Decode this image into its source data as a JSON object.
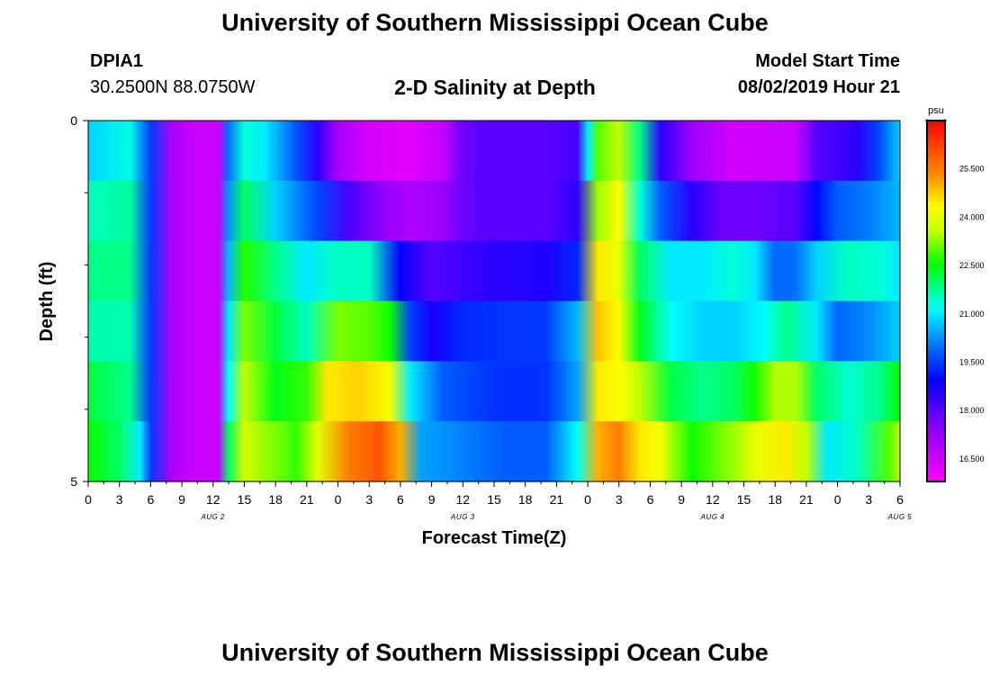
{
  "header": {
    "top_title": "University of Southern Mississippi Ocean Cube",
    "station_id": "DPIA1",
    "location": "30.2500N 88.0750W",
    "model_start_label": "Model Start Time",
    "model_start_value": "08/02/2019 Hour 21"
  },
  "footer": {
    "bottom_title": "University of Southern Mississippi Ocean Cube"
  },
  "chart_data": {
    "type": "heatmap",
    "title": "2-D Salinity at Depth",
    "xlabel": "Forecast Time(Z)",
    "ylabel": "Depth (ft)",
    "ylim": [
      0,
      5
    ],
    "y_tick_labels": [
      "0",
      "5"
    ],
    "x_tick_labels": [
      "0",
      "3",
      "6",
      "9",
      "12",
      "15",
      "18",
      "21",
      "0",
      "3",
      "6",
      "9",
      "12",
      "15",
      "18",
      "21",
      "0",
      "3",
      "6",
      "9",
      "12",
      "15",
      "18",
      "21",
      "0",
      "3",
      "6"
    ],
    "day_labels": [
      {
        "text": "AUG 2",
        "hour": 12
      },
      {
        "text": "AUG 3",
        "hour": 36
      },
      {
        "text": "AUG 4",
        "hour": 60
      },
      {
        "text": "AUG 5",
        "hour": 78
      }
    ],
    "x_range_hours": [
      0,
      78
    ],
    "colorbar": {
      "unit": "psu",
      "min": 15.8,
      "max": 27.0,
      "tick_labels": [
        "16.500",
        "18.000",
        "19.500",
        "21.000",
        "22.500",
        "24.000",
        "25.500"
      ],
      "tick_values": [
        16.5,
        18.0,
        19.5,
        21.0,
        22.5,
        24.0,
        25.5
      ]
    },
    "depth_rows": [
      "0-1 ft",
      "1-2 ft",
      "2-3 ft",
      "3-4 ft",
      "4-5 ft",
      "5 ft"
    ],
    "salinity_keypoints": [
      [
        [
          0,
          20.8
        ],
        [
          4,
          21.3
        ],
        [
          6,
          19.5
        ],
        [
          8,
          17.0
        ],
        [
          10,
          16.6
        ],
        [
          12.5,
          16.6
        ],
        [
          13.5,
          20
        ],
        [
          15,
          21.4
        ],
        [
          17,
          21.0
        ],
        [
          20,
          19.7
        ],
        [
          22,
          18.5
        ],
        [
          24,
          17.0
        ],
        [
          27,
          16.4
        ],
        [
          31,
          16.2
        ],
        [
          34,
          16.6
        ],
        [
          36,
          17.8
        ],
        [
          38,
          18.0
        ],
        [
          44,
          18.0
        ],
        [
          47,
          18.2
        ],
        [
          48,
          21.0
        ],
        [
          49,
          23.0
        ],
        [
          51,
          23.6
        ],
        [
          53,
          21.8
        ],
        [
          55,
          18.5
        ],
        [
          58,
          17.2
        ],
        [
          62,
          16.4
        ],
        [
          68,
          16.6
        ],
        [
          70,
          18.0
        ],
        [
          74,
          18.5
        ],
        [
          76,
          19.6
        ],
        [
          78,
          20.8
        ]
      ],
      [
        [
          0,
          21.5
        ],
        [
          4,
          21.7
        ],
        [
          6,
          19.5
        ],
        [
          8,
          17.0
        ],
        [
          10,
          16.6
        ],
        [
          12.5,
          16.6
        ],
        [
          13.5,
          20.3
        ],
        [
          15,
          22.0
        ],
        [
          18,
          20.8
        ],
        [
          20,
          20.2
        ],
        [
          22,
          19.6
        ],
        [
          25,
          18.2
        ],
        [
          28,
          17.4
        ],
        [
          31,
          16.9
        ],
        [
          34,
          17.2
        ],
        [
          36,
          17.8
        ],
        [
          38,
          18.0
        ],
        [
          44,
          18.0
        ],
        [
          47,
          18.5
        ],
        [
          49,
          23.4
        ],
        [
          51,
          24.3
        ],
        [
          53,
          21.4
        ],
        [
          55,
          19.8
        ],
        [
          58,
          18.5
        ],
        [
          61,
          17.8
        ],
        [
          64,
          17.8
        ],
        [
          68,
          18.0
        ],
        [
          70,
          19.0
        ],
        [
          72,
          19.8
        ],
        [
          75,
          20.1
        ],
        [
          78,
          20.6
        ]
      ],
      [
        [
          0,
          21.8
        ],
        [
          4,
          21.8
        ],
        [
          6,
          19.5
        ],
        [
          8,
          17.0
        ],
        [
          10,
          16.6
        ],
        [
          12.5,
          16.6
        ],
        [
          13.5,
          20.6
        ],
        [
          15,
          22.7
        ],
        [
          18,
          21.8
        ],
        [
          21,
          21.0
        ],
        [
          24,
          21.5
        ],
        [
          27,
          21.5
        ],
        [
          30,
          18.9
        ],
        [
          33,
          18.0
        ],
        [
          36,
          18.3
        ],
        [
          39,
          18.5
        ],
        [
          44,
          18.6
        ],
        [
          47,
          19.3
        ],
        [
          49,
          24.5
        ],
        [
          51,
          24.0
        ],
        [
          53,
          22.0
        ],
        [
          56,
          21.0
        ],
        [
          59,
          21.0
        ],
        [
          62,
          21.4
        ],
        [
          64,
          21.0
        ],
        [
          66,
          19.9
        ],
        [
          68,
          20.0
        ],
        [
          70,
          20.8
        ],
        [
          73,
          21.5
        ],
        [
          76,
          21.4
        ],
        [
          78,
          21.0
        ]
      ],
      [
        [
          0,
          21.6
        ],
        [
          4,
          21.6
        ],
        [
          6,
          19.5
        ],
        [
          8,
          17.0
        ],
        [
          10,
          16.6
        ],
        [
          12.5,
          16.6
        ],
        [
          13.5,
          21.0
        ],
        [
          15,
          23.2
        ],
        [
          18,
          22.2
        ],
        [
          21,
          21.5
        ],
        [
          24,
          23.2
        ],
        [
          27,
          23.0
        ],
        [
          29,
          22.6
        ],
        [
          31,
          19.5
        ],
        [
          33,
          18.7
        ],
        [
          36,
          19.3
        ],
        [
          39,
          19.4
        ],
        [
          44,
          19.5
        ],
        [
          47,
          20.6
        ],
        [
          49,
          24.8
        ],
        [
          51,
          24.3
        ],
        [
          53,
          22.4
        ],
        [
          56,
          21.2
        ],
        [
          59,
          20.8
        ],
        [
          62,
          20.8
        ],
        [
          65,
          21.2
        ],
        [
          67,
          21.8
        ],
        [
          70,
          21.0
        ],
        [
          72,
          19.9
        ],
        [
          75,
          20.2
        ],
        [
          78,
          20.8
        ]
      ],
      [
        [
          0,
          22.2
        ],
        [
          4,
          21.8
        ],
        [
          6,
          19.5
        ],
        [
          8,
          17.0
        ],
        [
          10,
          16.6
        ],
        [
          12.5,
          16.6
        ],
        [
          13.5,
          21.2
        ],
        [
          15,
          23.6
        ],
        [
          18,
          22.4
        ],
        [
          21,
          22.8
        ],
        [
          23,
          24.5
        ],
        [
          26,
          24.7
        ],
        [
          29,
          24.2
        ],
        [
          31,
          21.0
        ],
        [
          34,
          19.8
        ],
        [
          39,
          19.4
        ],
        [
          44,
          19.4
        ],
        [
          47,
          20.4
        ],
        [
          49,
          24.5
        ],
        [
          51,
          24.3
        ],
        [
          53,
          23.6
        ],
        [
          56,
          22.2
        ],
        [
          59,
          21.8
        ],
        [
          62,
          22.0
        ],
        [
          64,
          22.6
        ],
        [
          66,
          23.5
        ],
        [
          68,
          23.5
        ],
        [
          70,
          22.0
        ],
        [
          73,
          21.4
        ],
        [
          76,
          21.8
        ],
        [
          78,
          22.5
        ]
      ],
      [
        [
          0,
          22.6
        ],
        [
          3,
          22.0
        ],
        [
          5,
          21.0
        ],
        [
          6,
          19.5
        ],
        [
          8,
          17.0
        ],
        [
          10,
          16.6
        ],
        [
          12.5,
          16.6
        ],
        [
          13.5,
          22.0
        ],
        [
          15,
          23.8
        ],
        [
          18,
          23.2
        ],
        [
          20,
          22.8
        ],
        [
          22,
          24.0
        ],
        [
          25,
          25.5
        ],
        [
          28,
          26.0
        ],
        [
          30,
          25.0
        ],
        [
          32,
          20.4
        ],
        [
          35,
          20.2
        ],
        [
          40,
          19.8
        ],
        [
          44,
          19.8
        ],
        [
          47,
          21.2
        ],
        [
          49,
          25.0
        ],
        [
          51,
          25.5
        ],
        [
          53,
          24.5
        ],
        [
          55,
          24.2
        ],
        [
          58,
          22.6
        ],
        [
          61,
          23.2
        ],
        [
          64,
          24.0
        ],
        [
          67,
          24.5
        ],
        [
          69,
          23.6
        ],
        [
          71,
          21.0
        ],
        [
          74,
          21.5
        ],
        [
          77,
          23.0
        ],
        [
          78,
          23.6
        ]
      ]
    ]
  }
}
